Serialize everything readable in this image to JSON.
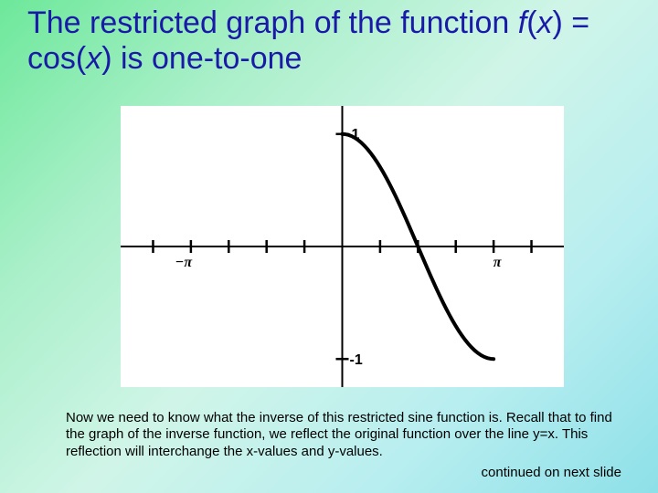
{
  "title_plain_1": "The restricted graph of the function ",
  "title_func_f": "f",
  "title_func_open": "(",
  "title_func_x1": "x",
  "title_func_close_eq": ") = cos(",
  "title_func_x2": "x",
  "title_func_end": ") is one-to-one",
  "chart": {
    "type": "line",
    "background_color": "#ffffff",
    "axis_color": "#000000",
    "line_color": "#000000",
    "line_width": 4,
    "tick_color": "#000000",
    "xlim": [
      -4.6,
      4.6
    ],
    "ylim": [
      -1.25,
      1.25
    ],
    "y_top_label": "1",
    "y_bottom_label": "-1",
    "x_neg_label": "−π",
    "x_pos_label": "π",
    "label_fontsize": 16,
    "xtick_step": 0.7854,
    "curve_domain": [
      0,
      3.1416
    ],
    "curve_samples": 48
  },
  "body": {
    "p1a": "Now we need to know what the inverse of this restricted sine function is.  Recall that to find the graph of the inverse function, we reflect the original function over the line y=x.  This reflection will interchange the x-values and y-values.",
    "continued": "continued on next slide"
  }
}
